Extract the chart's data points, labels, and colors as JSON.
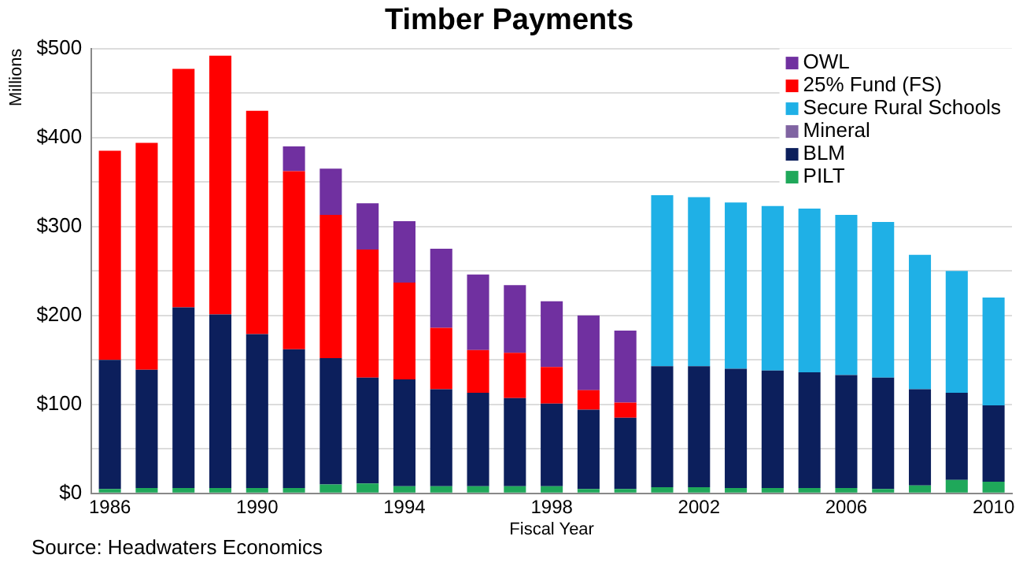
{
  "chart_data": {
    "type": "bar",
    "stacked": true,
    "title": "Timber Payments",
    "xlabel": "Fiscal Year",
    "ylabel": "Millions",
    "annotations": [
      "Source: Headwaters Economics"
    ],
    "categories": [
      "1986",
      null,
      null,
      null,
      "1990",
      null,
      null,
      null,
      "1994",
      null,
      null,
      null,
      "1998",
      null,
      null,
      null,
      "2002",
      null,
      null,
      null,
      "2006",
      null,
      null,
      null,
      "2010"
    ],
    "series": [
      {
        "name": "PILT",
        "color": "#1fa85a",
        "values": [
          5,
          6,
          6,
          6,
          6,
          6,
          10,
          11,
          8,
          8,
          8,
          8,
          8,
          5,
          5,
          7,
          7,
          6,
          6,
          6,
          6,
          5,
          9,
          15,
          13
        ]
      },
      {
        "name": "BLM",
        "color": "#0c1f5c",
        "values": [
          145,
          133,
          203,
          195,
          173,
          156,
          142,
          119,
          120,
          109,
          105,
          99,
          93,
          89,
          80,
          136,
          136,
          134,
          132,
          130,
          127,
          125,
          108,
          98,
          86
        ]
      },
      {
        "name": "Mineral",
        "color": "#8064a2",
        "values": [
          0,
          0,
          0,
          0,
          0,
          0,
          0,
          0,
          0,
          0,
          0,
          0,
          0,
          0,
          0,
          0,
          0,
          0,
          0,
          0,
          0,
          0,
          0,
          0,
          0
        ]
      },
      {
        "name": "Secure Rural Schools",
        "color": "#1fb0e6",
        "values": [
          null,
          null,
          null,
          null,
          null,
          null,
          null,
          null,
          null,
          null,
          null,
          null,
          null,
          null,
          null,
          192,
          190,
          187,
          185,
          184,
          180,
          175,
          151,
          137,
          121
        ]
      },
      {
        "name": "25% Fund (FS)",
        "color": "#ff0000",
        "values": [
          235,
          255,
          268,
          291,
          251,
          200,
          161,
          144,
          109,
          69,
          48,
          51,
          41,
          22,
          17,
          null,
          null,
          null,
          null,
          null,
          null,
          null,
          null,
          null,
          null
        ]
      },
      {
        "name": "OWL",
        "color": "#7030a0",
        "values": [
          null,
          null,
          null,
          null,
          null,
          28,
          52,
          52,
          69,
          89,
          85,
          76,
          74,
          84,
          81,
          null,
          null,
          null,
          null,
          null,
          null,
          null,
          null,
          null,
          null
        ]
      }
    ],
    "ylim": [
      0,
      500
    ],
    "yticks": [
      {
        "value": 0,
        "label": "$0"
      },
      {
        "value": 50,
        "label": null
      },
      {
        "value": 100,
        "label": "$100"
      },
      {
        "value": 150,
        "label": null
      },
      {
        "value": 200,
        "label": "$200"
      },
      {
        "value": 250,
        "label": null
      },
      {
        "value": 300,
        "label": "$300"
      },
      {
        "value": 350,
        "label": null
      },
      {
        "value": 400,
        "label": "$400"
      },
      {
        "value": 450,
        "label": null
      },
      {
        "value": 500,
        "label": "$500"
      }
    ],
    "grid": "y",
    "legend": "top right"
  }
}
